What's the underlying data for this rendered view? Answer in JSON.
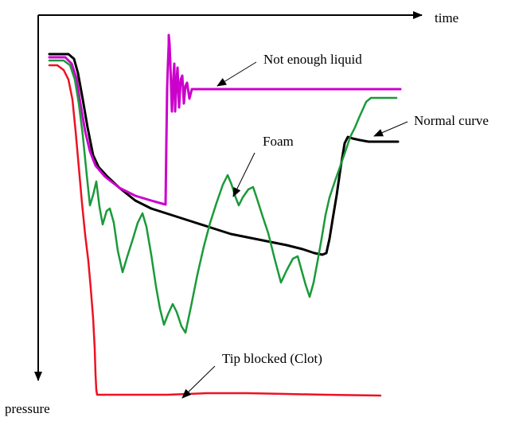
{
  "chart_data": {
    "type": "line",
    "title": "",
    "xlabel": "time",
    "ylabel": "pressure",
    "y_direction": "increases downward",
    "grid": false,
    "legend": "none; curves labeled by arrow annotations",
    "series": [
      {
        "name": "Normal curve",
        "color": "#000000",
        "points": [
          [
            62,
            68
          ],
          [
            86,
            68
          ],
          [
            93,
            74
          ],
          [
            98,
            92
          ],
          [
            104,
            125
          ],
          [
            110,
            160
          ],
          [
            117,
            195
          ],
          [
            124,
            210
          ],
          [
            135,
            222
          ],
          [
            150,
            236
          ],
          [
            170,
            252
          ],
          [
            190,
            262
          ],
          [
            215,
            270
          ],
          [
            240,
            278
          ],
          [
            265,
            286
          ],
          [
            290,
            294
          ],
          [
            315,
            299
          ],
          [
            340,
            304
          ],
          [
            360,
            308
          ],
          [
            380,
            313
          ],
          [
            395,
            318
          ],
          [
            405,
            320
          ],
          [
            410,
            318
          ],
          [
            414,
            300
          ],
          [
            418,
            275
          ],
          [
            423,
            245
          ],
          [
            428,
            210
          ],
          [
            433,
            180
          ],
          [
            437,
            172
          ],
          [
            443,
            174
          ],
          [
            452,
            176
          ],
          [
            463,
            178
          ],
          [
            482,
            178
          ],
          [
            500,
            178
          ]
        ]
      },
      {
        "name": "Not enough liquid",
        "color": "#cc00cc",
        "points": [
          [
            62,
            72
          ],
          [
            82,
            72
          ],
          [
            90,
            80
          ],
          [
            96,
            98
          ],
          [
            101,
            130
          ],
          [
            107,
            165
          ],
          [
            113,
            190
          ],
          [
            120,
            208
          ],
          [
            132,
            222
          ],
          [
            150,
            236
          ],
          [
            170,
            246
          ],
          [
            190,
            252
          ],
          [
            208,
            257
          ],
          [
            209,
            180
          ],
          [
            210,
            110
          ],
          [
            211,
            80
          ],
          [
            212,
            55
          ],
          [
            212,
            44
          ],
          [
            213,
            55
          ],
          [
            214,
            80
          ],
          [
            216,
            140
          ],
          [
            218,
            95
          ],
          [
            219,
            80
          ],
          [
            220,
            140
          ],
          [
            222,
            100
          ],
          [
            223,
            85
          ],
          [
            225,
            135
          ],
          [
            227,
            100
          ],
          [
            229,
            95
          ],
          [
            231,
            130
          ],
          [
            233,
            108
          ],
          [
            235,
            104
          ],
          [
            238,
            124
          ],
          [
            241,
            112
          ],
          [
            244,
            112
          ],
          [
            250,
            112
          ],
          [
            270,
            112
          ],
          [
            300,
            112
          ],
          [
            350,
            112
          ],
          [
            400,
            112
          ],
          [
            450,
            112
          ],
          [
            503,
            112
          ]
        ]
      },
      {
        "name": "Foam",
        "color": "#1a9a3a",
        "points": [
          [
            62,
            76
          ],
          [
            80,
            76
          ],
          [
            88,
            82
          ],
          [
            94,
            100
          ],
          [
            99,
            130
          ],
          [
            104,
            170
          ],
          [
            109,
            220
          ],
          [
            113,
            258
          ],
          [
            117,
            245
          ],
          [
            121,
            228
          ],
          [
            125,
            260
          ],
          [
            129,
            282
          ],
          [
            134,
            265
          ],
          [
            138,
            262
          ],
          [
            143,
            280
          ],
          [
            148,
            315
          ],
          [
            154,
            342
          ],
          [
            160,
            322
          ],
          [
            167,
            300
          ],
          [
            173,
            280
          ],
          [
            179,
            268
          ],
          [
            184,
            285
          ],
          [
            190,
            320
          ],
          [
            196,
            360
          ],
          [
            201,
            388
          ],
          [
            206,
            408
          ],
          [
            211,
            395
          ],
          [
            217,
            382
          ],
          [
            222,
            392
          ],
          [
            228,
            410
          ],
          [
            233,
            418
          ],
          [
            240,
            385
          ],
          [
            248,
            345
          ],
          [
            256,
            310
          ],
          [
            264,
            280
          ],
          [
            272,
            255
          ],
          [
            280,
            232
          ],
          [
            286,
            220
          ],
          [
            291,
            232
          ],
          [
            296,
            248
          ],
          [
            300,
            258
          ],
          [
            305,
            248
          ],
          [
            312,
            238
          ],
          [
            318,
            235
          ],
          [
            323,
            250
          ],
          [
            330,
            272
          ],
          [
            337,
            293
          ],
          [
            345,
            325
          ],
          [
            353,
            355
          ],
          [
            360,
            340
          ],
          [
            368,
            325
          ],
          [
            374,
            322
          ],
          [
            379,
            340
          ],
          [
            384,
            358
          ],
          [
            389,
            373
          ],
          [
            394,
            355
          ],
          [
            399,
            328
          ],
          [
            404,
            300
          ],
          [
            409,
            270
          ],
          [
            414,
            248
          ],
          [
            420,
            230
          ],
          [
            427,
            210
          ],
          [
            434,
            190
          ],
          [
            440,
            172
          ],
          [
            446,
            160
          ],
          [
            451,
            148
          ],
          [
            456,
            137
          ],
          [
            460,
            128
          ],
          [
            466,
            123
          ],
          [
            480,
            123
          ],
          [
            498,
            123
          ]
        ]
      },
      {
        "name": "Tip blocked (Clot)",
        "color": "#ee1122",
        "points": [
          [
            62,
            82
          ],
          [
            72,
            82
          ],
          [
            80,
            88
          ],
          [
            86,
            100
          ],
          [
            91,
            125
          ],
          [
            95,
            165
          ],
          [
            99,
            210
          ],
          [
            103,
            255
          ],
          [
            107,
            295
          ],
          [
            111,
            328
          ],
          [
            114,
            362
          ],
          [
            117,
            400
          ],
          [
            119,
            438
          ],
          [
            120,
            470
          ],
          [
            121,
            490
          ],
          [
            122,
            496
          ],
          [
            140,
            496
          ],
          [
            170,
            496
          ],
          [
            210,
            496
          ],
          [
            260,
            494
          ],
          [
            310,
            494
          ],
          [
            360,
            495
          ],
          [
            410,
            496
          ],
          [
            478,
            497
          ]
        ]
      }
    ],
    "annotations": [
      {
        "text": "Not enough liquid",
        "target": "Not enough liquid"
      },
      {
        "text": "Foam",
        "target": "Foam"
      },
      {
        "text": "Normal curve",
        "target": "Normal curve"
      },
      {
        "text": "Tip blocked (Clot)",
        "target": "Tip blocked (Clot)"
      }
    ]
  }
}
